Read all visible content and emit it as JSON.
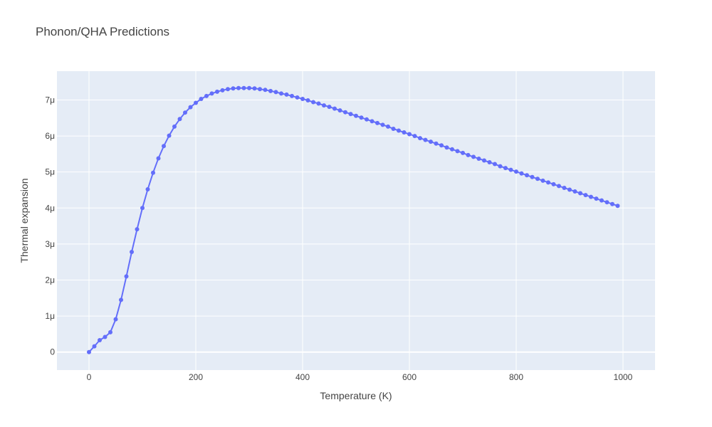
{
  "chart_data": {
    "type": "line",
    "title": "Phonon/QHA Predictions",
    "xlabel": "Temperature (K)",
    "ylabel": "Thermal expansion",
    "xlim": [
      -60,
      1060
    ],
    "ylim": [
      -5e-07,
      7.8e-06
    ],
    "grid": true,
    "legend": "none",
    "line_color": "#636efa",
    "plot_bg": "#e5ecf6",
    "x_ticks": [
      {
        "value": 0,
        "label": "0"
      },
      {
        "value": 200,
        "label": "200"
      },
      {
        "value": 400,
        "label": "400"
      },
      {
        "value": 600,
        "label": "600"
      },
      {
        "value": 800,
        "label": "800"
      },
      {
        "value": 1000,
        "label": "1000"
      }
    ],
    "y_ticks": [
      {
        "value": 0,
        "label": "0"
      },
      {
        "value": 1e-06,
        "label": "1μ"
      },
      {
        "value": 2e-06,
        "label": "2μ"
      },
      {
        "value": 3e-06,
        "label": "3μ"
      },
      {
        "value": 4e-06,
        "label": "4μ"
      },
      {
        "value": 5e-06,
        "label": "5μ"
      },
      {
        "value": 6e-06,
        "label": "6μ"
      },
      {
        "value": 7e-06,
        "label": "7μ"
      }
    ],
    "series": [
      {
        "x": [
          0,
          10,
          20,
          30,
          40,
          50,
          60,
          70,
          80,
          90,
          100,
          110,
          120,
          130,
          140,
          150,
          160,
          170,
          180,
          190,
          200,
          210,
          220,
          230,
          240,
          250,
          260,
          270,
          280,
          290,
          300,
          310,
          320,
          330,
          340,
          350,
          360,
          370,
          380,
          390,
          400,
          410,
          420,
          430,
          440,
          450,
          460,
          470,
          480,
          490,
          500,
          510,
          520,
          530,
          540,
          550,
          560,
          570,
          580,
          590,
          600,
          610,
          620,
          630,
          640,
          650,
          660,
          670,
          680,
          690,
          700,
          710,
          720,
          730,
          740,
          750,
          760,
          770,
          780,
          790,
          800,
          810,
          820,
          830,
          840,
          850,
          860,
          870,
          880,
          890,
          900,
          910,
          920,
          930,
          940,
          950,
          960,
          970,
          980,
          990
        ],
        "y": [
          0,
          1.6e-07,
          3.3e-07,
          4.2e-07,
          5.5e-07,
          9.1e-07,
          1.45e-06,
          2.1e-06,
          2.78e-06,
          3.41e-06,
          4e-06,
          4.52e-06,
          4.98e-06,
          5.38e-06,
          5.72e-06,
          6.01e-06,
          6.26e-06,
          6.47e-06,
          6.65e-06,
          6.8e-06,
          6.92e-06,
          7.03e-06,
          7.11e-06,
          7.18e-06,
          7.23e-06,
          7.27e-06,
          7.3e-06,
          7.32e-06,
          7.33e-06,
          7.33e-06,
          7.33e-06,
          7.32e-06,
          7.3e-06,
          7.28e-06,
          7.25e-06,
          7.22e-06,
          7.18e-06,
          7.15e-06,
          7.11e-06,
          7.07e-06,
          7.03e-06,
          6.99e-06,
          6.94e-06,
          6.9e-06,
          6.85e-06,
          6.81e-06,
          6.76e-06,
          6.71e-06,
          6.66e-06,
          6.61e-06,
          6.56e-06,
          6.51e-06,
          6.46e-06,
          6.41e-06,
          6.36e-06,
          6.31e-06,
          6.26e-06,
          6.2e-06,
          6.15e-06,
          6.1e-06,
          6.05e-06,
          6e-06,
          5.94e-06,
          5.89e-06,
          5.84e-06,
          5.79e-06,
          5.74e-06,
          5.68e-06,
          5.63e-06,
          5.58e-06,
          5.53e-06,
          5.47e-06,
          5.42e-06,
          5.37e-06,
          5.32e-06,
          5.27e-06,
          5.22e-06,
          5.16e-06,
          5.11e-06,
          5.06e-06,
          5.01e-06,
          4.96e-06,
          4.91e-06,
          4.86e-06,
          4.81e-06,
          4.76e-06,
          4.71e-06,
          4.66e-06,
          4.61e-06,
          4.56e-06,
          4.51e-06,
          4.46e-06,
          4.41e-06,
          4.36e-06,
          4.31e-06,
          4.26e-06,
          4.21e-06,
          4.16e-06,
          4.11e-06,
          4.06e-06
        ]
      }
    ]
  }
}
